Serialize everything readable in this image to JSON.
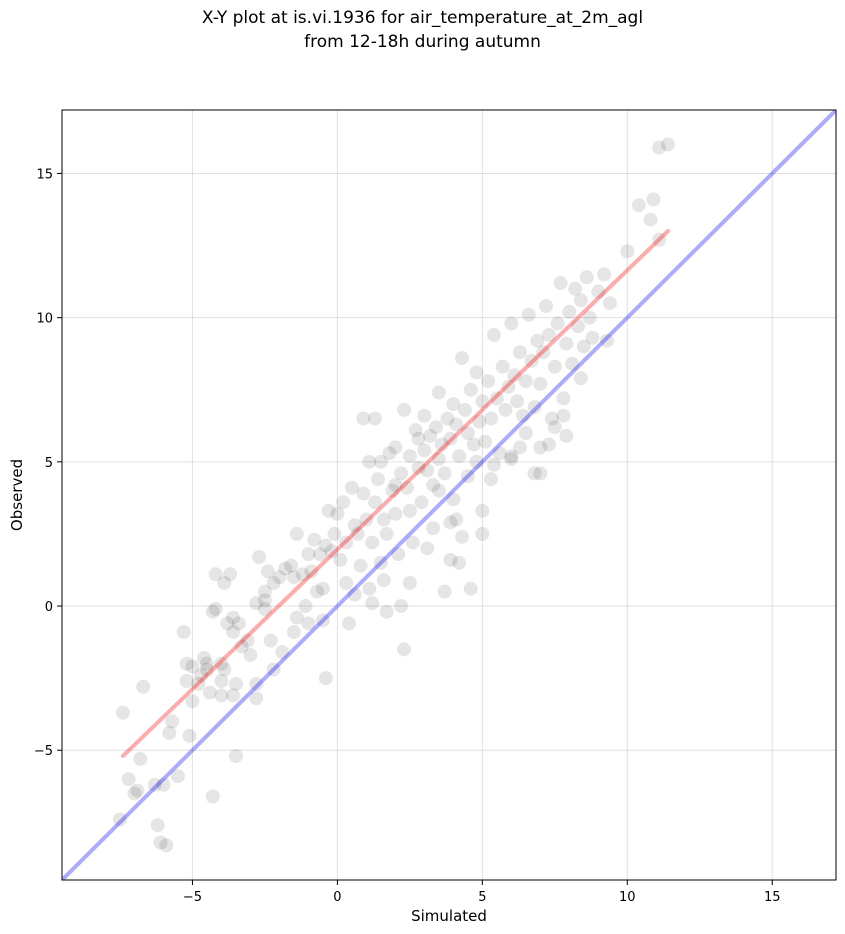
{
  "chart_data": {
    "type": "scatter",
    "title": [
      "X-Y plot at is.vi.1936 for air_temperature_at_2m_agl",
      "from 12-18h during autumn"
    ],
    "xlabel": "Simulated",
    "ylabel": "Observed",
    "xlim": [
      -9.5,
      17.2
    ],
    "ylim": [
      -9.5,
      17.2
    ],
    "xticks": [
      -5,
      0,
      5,
      10,
      15
    ],
    "yticks": [
      -5,
      0,
      5,
      10,
      15
    ],
    "xtick_labels": [
      "−5",
      "0",
      "5",
      "10",
      "15"
    ],
    "ytick_labels": [
      "−5",
      "0",
      "5",
      "10",
      "15"
    ],
    "grid": true,
    "series": [
      {
        "kind": "points",
        "color": "#000000",
        "alpha": 0.1,
        "points": [
          [
            -7.5,
            -7.4
          ],
          [
            -7.4,
            -3.7
          ],
          [
            -7.2,
            -6.0
          ],
          [
            -7.0,
            -6.5
          ],
          [
            -6.9,
            -6.4
          ],
          [
            -6.8,
            -5.3
          ],
          [
            -6.7,
            -2.8
          ],
          [
            -6.3,
            -6.2
          ],
          [
            -6.2,
            -7.6
          ],
          [
            -6.1,
            -8.2
          ],
          [
            -6.0,
            -6.2
          ],
          [
            -5.9,
            -8.3
          ],
          [
            -5.8,
            -4.4
          ],
          [
            -5.7,
            -4.0
          ],
          [
            -5.5,
            -5.9
          ],
          [
            -5.3,
            -0.9
          ],
          [
            -5.2,
            -2.0
          ],
          [
            -5.2,
            -2.6
          ],
          [
            -5.0,
            -3.3
          ],
          [
            -5.1,
            -4.5
          ],
          [
            -5.0,
            -2.1
          ],
          [
            -4.8,
            -2.7
          ],
          [
            -4.7,
            -2.4
          ],
          [
            -4.6,
            -1.8
          ],
          [
            -4.5,
            -2.0
          ],
          [
            -4.4,
            -3.0
          ],
          [
            -4.5,
            -2.2
          ],
          [
            -4.3,
            -6.6
          ],
          [
            -4.2,
            1.1
          ],
          [
            -4.2,
            -0.1
          ],
          [
            -4.0,
            -2.0
          ],
          [
            -4.0,
            -2.6
          ],
          [
            -4.0,
            -3.1
          ],
          [
            -3.9,
            -2.2
          ],
          [
            -3.8,
            -0.6
          ],
          [
            -3.6,
            -0.9
          ],
          [
            -3.6,
            -3.1
          ],
          [
            -3.5,
            -2.7
          ],
          [
            -3.5,
            -5.2
          ],
          [
            -3.4,
            -0.6
          ],
          [
            -3.3,
            -1.4
          ],
          [
            -3.0,
            -1.7
          ],
          [
            -2.8,
            -3.2
          ],
          [
            -2.8,
            0.1
          ],
          [
            -2.7,
            1.7
          ],
          [
            -2.5,
            0.2
          ],
          [
            -2.5,
            0.5
          ],
          [
            -2.4,
            1.2
          ],
          [
            -2.3,
            -1.2
          ],
          [
            -2.2,
            0.8
          ],
          [
            -2.2,
            -2.2
          ],
          [
            -2.0,
            1.0
          ],
          [
            -1.9,
            -1.6
          ],
          [
            -1.8,
            1.3
          ],
          [
            -1.6,
            1.4
          ],
          [
            -1.5,
            1.0
          ],
          [
            -1.4,
            2.5
          ],
          [
            -1.4,
            -0.4
          ],
          [
            -1.2,
            1.1
          ],
          [
            -1.1,
            0.0
          ],
          [
            -1.0,
            1.8
          ],
          [
            -0.9,
            1.2
          ],
          [
            -0.8,
            2.3
          ],
          [
            -0.7,
            0.5
          ],
          [
            -0.6,
            1.8
          ],
          [
            -0.5,
            -0.5
          ],
          [
            -0.4,
            2.1
          ],
          [
            -0.4,
            -2.5
          ],
          [
            -0.3,
            3.3
          ],
          [
            -0.2,
            1.9
          ],
          [
            -0.1,
            2.5
          ],
          [
            0.0,
            3.2
          ],
          [
            0.1,
            1.6
          ],
          [
            0.2,
            3.6
          ],
          [
            0.3,
            2.2
          ],
          [
            0.3,
            0.8
          ],
          [
            0.4,
            -0.6
          ],
          [
            0.5,
            4.1
          ],
          [
            0.6,
            2.8
          ],
          [
            0.7,
            2.5
          ],
          [
            0.8,
            1.4
          ],
          [
            0.9,
            3.9
          ],
          [
            1.0,
            3.0
          ],
          [
            1.1,
            5.0
          ],
          [
            1.1,
            0.6
          ],
          [
            1.2,
            2.2
          ],
          [
            1.3,
            3.6
          ],
          [
            1.3,
            6.5
          ],
          [
            1.4,
            4.4
          ],
          [
            1.5,
            1.5
          ],
          [
            1.6,
            3.0
          ],
          [
            1.7,
            2.5
          ],
          [
            1.7,
            -0.2
          ],
          [
            1.8,
            5.3
          ],
          [
            1.9,
            4.0
          ],
          [
            2.0,
            3.2
          ],
          [
            2.0,
            5.5
          ],
          [
            2.1,
            1.8
          ],
          [
            2.2,
            4.6
          ],
          [
            2.3,
            6.8
          ],
          [
            2.3,
            -1.5
          ],
          [
            2.4,
            4.1
          ],
          [
            2.5,
            3.3
          ],
          [
            2.5,
            5.2
          ],
          [
            2.6,
            2.2
          ],
          [
            2.7,
            6.1
          ],
          [
            2.8,
            4.8
          ],
          [
            2.8,
            5.8
          ],
          [
            2.9,
            3.6
          ],
          [
            3.0,
            5.4
          ],
          [
            3.0,
            6.6
          ],
          [
            3.1,
            4.7
          ],
          [
            3.2,
            5.9
          ],
          [
            3.3,
            4.2
          ],
          [
            3.3,
            2.7
          ],
          [
            3.4,
            6.2
          ],
          [
            3.5,
            5.1
          ],
          [
            3.5,
            7.4
          ],
          [
            3.6,
            5.6
          ],
          [
            3.7,
            4.6
          ],
          [
            3.7,
            0.5
          ],
          [
            3.8,
            6.5
          ],
          [
            3.9,
            5.8
          ],
          [
            4.0,
            7.0
          ],
          [
            4.0,
            3.7
          ],
          [
            4.1,
            6.3
          ],
          [
            4.2,
            5.2
          ],
          [
            4.3,
            8.6
          ],
          [
            4.3,
            2.4
          ],
          [
            4.4,
            6.8
          ],
          [
            4.5,
            6.0
          ],
          [
            4.5,
            4.5
          ],
          [
            4.6,
            7.5
          ],
          [
            4.7,
            5.6
          ],
          [
            4.8,
            8.1
          ],
          [
            4.9,
            6.4
          ],
          [
            5.0,
            7.1
          ],
          [
            5.0,
            2.5
          ],
          [
            5.1,
            5.7
          ],
          [
            5.2,
            7.8
          ],
          [
            5.3,
            6.5
          ],
          [
            5.4,
            9.4
          ],
          [
            5.5,
            7.2
          ],
          [
            5.6,
            5.3
          ],
          [
            5.7,
            8.3
          ],
          [
            5.8,
            6.8
          ],
          [
            5.9,
            7.6
          ],
          [
            6.0,
            9.8
          ],
          [
            6.0,
            5.1
          ],
          [
            6.1,
            8.0
          ],
          [
            6.2,
            7.1
          ],
          [
            6.3,
            8.8
          ],
          [
            6.4,
            6.6
          ],
          [
            6.5,
            7.8
          ],
          [
            6.6,
            10.1
          ],
          [
            6.7,
            8.5
          ],
          [
            6.8,
            6.9
          ],
          [
            6.9,
            9.2
          ],
          [
            7.0,
            7.7
          ],
          [
            7.0,
            4.6
          ],
          [
            7.1,
            8.8
          ],
          [
            7.2,
            10.4
          ],
          [
            7.3,
            9.4
          ],
          [
            7.4,
            6.5
          ],
          [
            7.5,
            8.3
          ],
          [
            7.6,
            9.8
          ],
          [
            7.7,
            11.2
          ],
          [
            7.8,
            7.2
          ],
          [
            7.9,
            9.1
          ],
          [
            8.0,
            10.2
          ],
          [
            8.1,
            8.4
          ],
          [
            8.2,
            11.0
          ],
          [
            8.3,
            9.7
          ],
          [
            8.4,
            10.6
          ],
          [
            8.5,
            9.0
          ],
          [
            8.6,
            11.4
          ],
          [
            8.7,
            10.0
          ],
          [
            8.8,
            9.3
          ],
          [
            9.0,
            10.9
          ],
          [
            9.2,
            11.5
          ],
          [
            9.4,
            10.5
          ],
          [
            10.0,
            12.3
          ],
          [
            10.4,
            13.9
          ],
          [
            10.8,
            13.4
          ],
          [
            10.9,
            14.1
          ],
          [
            11.1,
            12.7
          ],
          [
            11.1,
            15.9
          ],
          [
            11.4,
            16.0
          ],
          [
            0.9,
            6.5
          ],
          [
            1.5,
            5.0
          ],
          [
            2.0,
            4.2
          ],
          [
            3.5,
            4.0
          ],
          [
            4.8,
            5.0
          ],
          [
            5.3,
            4.4
          ],
          [
            6.3,
            5.5
          ],
          [
            6.8,
            4.6
          ],
          [
            7.3,
            5.6
          ],
          [
            7.9,
            5.9
          ],
          [
            6.5,
            6.0
          ],
          [
            7.5,
            6.2
          ],
          [
            7.0,
            5.5
          ],
          [
            3.9,
            1.6
          ],
          [
            4.6,
            0.6
          ],
          [
            4.2,
            1.5
          ],
          [
            2.5,
            0.8
          ],
          [
            2.2,
            0.0
          ],
          [
            -1.5,
            -0.9
          ],
          [
            -0.5,
            0.6
          ],
          [
            -2.8,
            -2.7
          ],
          [
            -3.1,
            -1.2
          ],
          [
            -4.3,
            -0.2
          ],
          [
            -3.9,
            0.8
          ],
          [
            -3.7,
            1.1
          ],
          [
            -3.6,
            -0.4
          ],
          [
            -2.5,
            -0.1
          ],
          [
            -1.0,
            -0.6
          ],
          [
            0.6,
            0.4
          ],
          [
            1.2,
            0.1
          ],
          [
            1.6,
            0.9
          ],
          [
            3.1,
            2.0
          ],
          [
            3.9,
            2.9
          ],
          [
            4.1,
            3.0
          ],
          [
            5.0,
            3.3
          ],
          [
            5.4,
            4.9
          ],
          [
            6.0,
            5.2
          ],
          [
            7.8,
            6.6
          ],
          [
            8.4,
            7.9
          ],
          [
            9.3,
            9.2
          ]
        ]
      },
      {
        "kind": "line",
        "color": "#ff0000",
        "alpha": 0.33,
        "x": [
          -7.4,
          11.4
        ],
        "y": [
          -5.2,
          13.0
        ]
      },
      {
        "kind": "line",
        "color": "#0000ff",
        "alpha": 0.33,
        "x": [
          -9.5,
          17.2
        ],
        "y": [
          -9.5,
          17.2
        ]
      }
    ]
  }
}
